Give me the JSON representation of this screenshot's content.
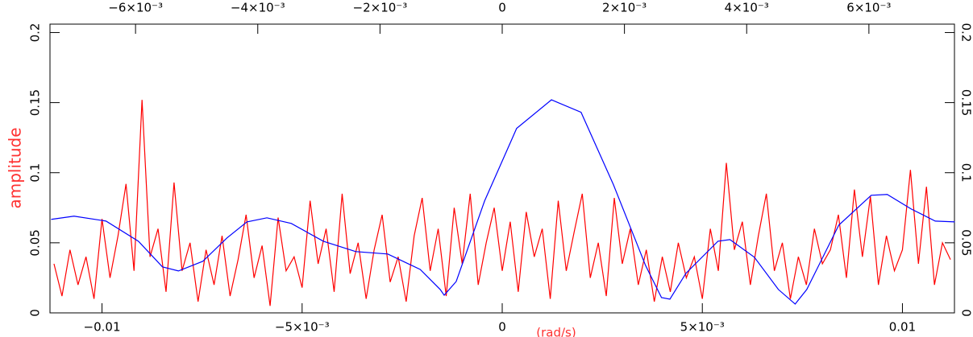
{
  "chart_data": {
    "type": "line",
    "y_label": "amplitude",
    "x_label": "(rad/s)",
    "xlim": [
      -0.0113,
      0.0113
    ],
    "xticks": [
      {
        "value": -0.01,
        "label": "−0.01"
      },
      {
        "value": -0.005,
        "label": "−5×10⁻³"
      },
      0,
      {
        "value": 0.005,
        "label": "5×10⁻³"
      },
      0.01
    ],
    "x2lim": [
      -0.0074,
      0.0074
    ],
    "x2ticks": [
      {
        "value": -0.006,
        "label": "−6×10⁻³"
      },
      {
        "value": -0.004,
        "label": "−4×10⁻³"
      },
      {
        "value": -0.002,
        "label": "−2×10⁻³"
      },
      0,
      {
        "value": 0.002,
        "label": "2×10⁻³"
      },
      {
        "value": 0.004,
        "label": "4×10⁻³"
      },
      {
        "value": 0.006,
        "label": "6×10⁻³"
      }
    ],
    "ylim": [
      0,
      0.206
    ],
    "yticks": [
      0,
      0.05,
      0.1,
      0.15,
      0.2
    ],
    "series": [
      {
        "color": "#ff0000",
        "x": [
          -0.0112,
          -0.011,
          -0.0108,
          -0.0106,
          -0.0104,
          -0.0102,
          -0.01,
          -0.0098,
          -0.0096,
          -0.0094,
          -0.0092,
          -0.009,
          -0.0088,
          -0.0086,
          -0.0084,
          -0.0082,
          -0.008,
          -0.0078,
          -0.0076,
          -0.0074,
          -0.0072,
          -0.007,
          -0.0068,
          -0.0066,
          -0.0064,
          -0.0062,
          -0.006,
          -0.0058,
          -0.0056,
          -0.0054,
          -0.0052,
          -0.005,
          -0.0048,
          -0.0046,
          -0.0044,
          -0.0042,
          -0.004,
          -0.0038,
          -0.0036,
          -0.0034,
          -0.0032,
          -0.003,
          -0.0028,
          -0.0026,
          -0.0024,
          -0.0022,
          -0.002,
          -0.0018,
          -0.0016,
          -0.0014,
          -0.0012,
          -0.001,
          -0.0008,
          -0.0006,
          -0.0004,
          -0.0002,
          0,
          0.0002,
          0.0004,
          0.0006,
          0.0008,
          0.001,
          0.0012,
          0.0014,
          0.0016,
          0.0018,
          0.002,
          0.0022,
          0.0024,
          0.0026,
          0.0028,
          0.003,
          0.0032,
          0.0034,
          0.0036,
          0.0038,
          0.004,
          0.0042,
          0.0044,
          0.0046,
          0.0048,
          0.005,
          0.0052,
          0.0054,
          0.0056,
          0.0058,
          0.006,
          0.0062,
          0.0064,
          0.0066,
          0.0068,
          0.007,
          0.0072,
          0.0074,
          0.0076,
          0.0078,
          0.008,
          0.0082,
          0.0084,
          0.0086,
          0.0088,
          0.009,
          0.0092,
          0.0094,
          0.0096,
          0.0098,
          0.01,
          0.0102,
          0.0104,
          0.0106,
          0.0108,
          0.011,
          0.0112
        ],
        "values": [
          0.035,
          0.012,
          0.045,
          0.02,
          0.04,
          0.01,
          0.067,
          0.025,
          0.055,
          0.092,
          0.03,
          0.152,
          0.04,
          0.06,
          0.015,
          0.093,
          0.03,
          0.05,
          0.008,
          0.045,
          0.02,
          0.055,
          0.012,
          0.038,
          0.07,
          0.025,
          0.048,
          0.005,
          0.068,
          0.03,
          0.04,
          0.018,
          0.08,
          0.035,
          0.06,
          0.015,
          0.085,
          0.028,
          0.05,
          0.01,
          0.045,
          0.07,
          0.022,
          0.04,
          0.008,
          0.055,
          0.082,
          0.03,
          0.06,
          0.012,
          0.075,
          0.035,
          0.085,
          0.02,
          0.05,
          0.075,
          0.03,
          0.065,
          0.015,
          0.072,
          0.04,
          0.06,
          0.01,
          0.08,
          0.03,
          0.058,
          0.085,
          0.025,
          0.05,
          0.012,
          0.082,
          0.035,
          0.06,
          0.02,
          0.045,
          0.008,
          0.04,
          0.015,
          0.05,
          0.025,
          0.04,
          0.01,
          0.06,
          0.03,
          0.107,
          0.045,
          0.065,
          0.02,
          0.055,
          0.085,
          0.03,
          0.05,
          0.01,
          0.04,
          0.02,
          0.06,
          0.035,
          0.045,
          0.07,
          0.025,
          0.088,
          0.04,
          0.083,
          0.02,
          0.055,
          0.03,
          0.045,
          0.102,
          0.035,
          0.09,
          0.02,
          0.05,
          0.038
        ]
      },
      {
        "color": "#0000ff",
        "x": [
          -0.01127,
          -0.0107,
          -0.0099,
          -0.00909,
          -0.00849,
          -0.00809,
          -0.00748,
          -0.00688,
          -0.00638,
          -0.00588,
          -0.00527,
          -0.00447,
          -0.00366,
          -0.00286,
          -0.00205,
          -0.00155,
          -0.00145,
          -0.00115,
          -0.00044,
          0.00036,
          0.00123,
          0.00197,
          0.00278,
          0.00358,
          0.00398,
          0.00419,
          0.00459,
          0.00539,
          0.00569,
          0.0063,
          0.0069,
          0.00732,
          0.00761,
          0.00841,
          0.00922,
          0.00962,
          0.01022,
          0.01082,
          0.01131
        ],
        "values": [
          0.0667,
          0.069,
          0.0655,
          0.0511,
          0.0328,
          0.0299,
          0.0368,
          0.0534,
          0.0649,
          0.0678,
          0.0638,
          0.0511,
          0.0437,
          0.042,
          0.031,
          0.0167,
          0.0126,
          0.0224,
          0.0799,
          0.1316,
          0.152,
          0.1431,
          0.0914,
          0.0339,
          0.0109,
          0.0098,
          0.0282,
          0.0511,
          0.0523,
          0.0397,
          0.0167,
          0.0063,
          0.0167,
          0.0626,
          0.0839,
          0.0845,
          0.0741,
          0.0655,
          0.0649
        ]
      }
    ]
  }
}
